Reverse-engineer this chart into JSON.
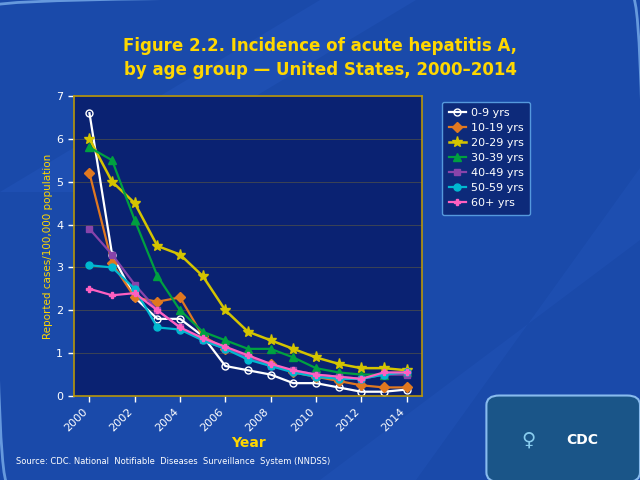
{
  "title_line1": "Figure 2.2. Incidence of acute hepatitis A,",
  "title_line2": "by age group — United States, 2000–2014",
  "xlabel": "Year",
  "ylabel": "Reported cases/100,000 population",
  "source": "Source: CDC. National  Notifiable  Diseases  Surveillance  System (NNDSS)",
  "bg_outer": "#0d3080",
  "bg_plot": "#0a2272",
  "title_color": "#ffd700",
  "axis_label_color": "#ffd700",
  "tick_color": "#ffffff",
  "spine_color": "#b8960a",
  "grid_color": "#b8960a",
  "legend_bg": "#0d2a7a",
  "legend_edge": "#5599dd",
  "years": [
    2000,
    2001,
    2002,
    2003,
    2004,
    2005,
    2006,
    2007,
    2008,
    2009,
    2010,
    2011,
    2012,
    2013,
    2014
  ],
  "series": [
    {
      "label": "0-9 yrs",
      "color": "#ffffff",
      "marker": "o",
      "markersize": 5,
      "markerfacecolor": "none",
      "linewidth": 1.6,
      "values": [
        6.6,
        3.3,
        2.3,
        1.8,
        1.8,
        1.4,
        0.7,
        0.6,
        0.5,
        0.3,
        0.3,
        0.2,
        0.1,
        0.1,
        0.15
      ]
    },
    {
      "label": "10-19 yrs",
      "color": "#e07820",
      "marker": "D",
      "markersize": 5,
      "markerfacecolor": "#e07820",
      "linewidth": 1.6,
      "values": [
        5.2,
        3.1,
        2.3,
        2.2,
        2.3,
        1.4,
        1.1,
        0.9,
        0.75,
        0.55,
        0.45,
        0.35,
        0.25,
        0.2,
        0.2
      ]
    },
    {
      "label": "20-29 yrs",
      "color": "#d4c400",
      "marker": "*",
      "markersize": 8,
      "markerfacecolor": "#d4c400",
      "linewidth": 1.8,
      "values": [
        6.0,
        5.0,
        4.5,
        3.5,
        3.3,
        2.8,
        2.0,
        1.5,
        1.3,
        1.1,
        0.9,
        0.75,
        0.65,
        0.65,
        0.6
      ]
    },
    {
      "label": "30-39 yrs",
      "color": "#00a040",
      "marker": "^",
      "markersize": 6,
      "markerfacecolor": "#00a040",
      "linewidth": 1.6,
      "values": [
        5.8,
        5.5,
        4.1,
        2.8,
        2.0,
        1.5,
        1.3,
        1.1,
        1.1,
        0.9,
        0.65,
        0.55,
        0.5,
        0.5,
        0.55
      ]
    },
    {
      "label": "40-49 yrs",
      "color": "#8844aa",
      "marker": "s",
      "markersize": 5,
      "markerfacecolor": "#8844aa",
      "linewidth": 1.6,
      "values": [
        3.9,
        3.3,
        2.6,
        2.0,
        1.6,
        1.3,
        1.1,
        0.9,
        0.7,
        0.6,
        0.5,
        0.45,
        0.4,
        0.5,
        0.5
      ]
    },
    {
      "label": "50-59 yrs",
      "color": "#00b8d0",
      "marker": "o",
      "markersize": 5,
      "markerfacecolor": "#00b8d0",
      "linewidth": 1.6,
      "values": [
        3.05,
        3.0,
        2.5,
        1.6,
        1.55,
        1.3,
        1.1,
        0.85,
        0.7,
        0.55,
        0.45,
        0.4,
        0.4,
        0.5,
        0.55
      ]
    },
    {
      "label": "60+ yrs",
      "color": "#ff60c0",
      "marker": "P",
      "markersize": 5,
      "markerfacecolor": "#ff60c0",
      "linewidth": 1.6,
      "values": [
        2.5,
        2.35,
        2.4,
        2.0,
        1.6,
        1.35,
        1.15,
        0.95,
        0.75,
        0.6,
        0.5,
        0.45,
        0.4,
        0.55,
        0.55
      ]
    }
  ],
  "ylim": [
    0,
    7
  ],
  "yticks": [
    0,
    1,
    2,
    3,
    4,
    5,
    6,
    7
  ],
  "xticks": [
    2000,
    2002,
    2004,
    2006,
    2008,
    2010,
    2012,
    2014
  ]
}
